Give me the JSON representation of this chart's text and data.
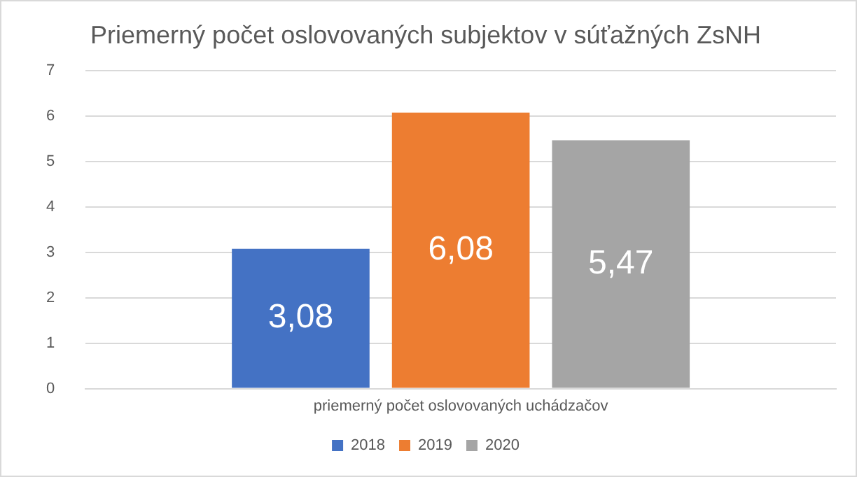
{
  "chart_data": {
    "type": "bar",
    "title": "Priemerný počet oslovovaných subjektov v súťažných ZsNH",
    "categories": [
      "priemerný počet oslovovaných uchádzačov"
    ],
    "series": [
      {
        "name": "2018",
        "color": "#4472c4",
        "values": [
          3.08
        ],
        "value_labels": [
          "3,08"
        ]
      },
      {
        "name": "2019",
        "color": "#ed7d31",
        "values": [
          6.08
        ],
        "value_labels": [
          "6,08"
        ]
      },
      {
        "name": "2020",
        "color": "#a5a5a5",
        "values": [
          5.47
        ],
        "value_labels": [
          "5,47"
        ]
      }
    ],
    "ylim": [
      0,
      7
    ],
    "yticks": [
      0,
      1,
      2,
      3,
      4,
      5,
      6,
      7
    ],
    "grid": "y",
    "legend": "bottom"
  }
}
